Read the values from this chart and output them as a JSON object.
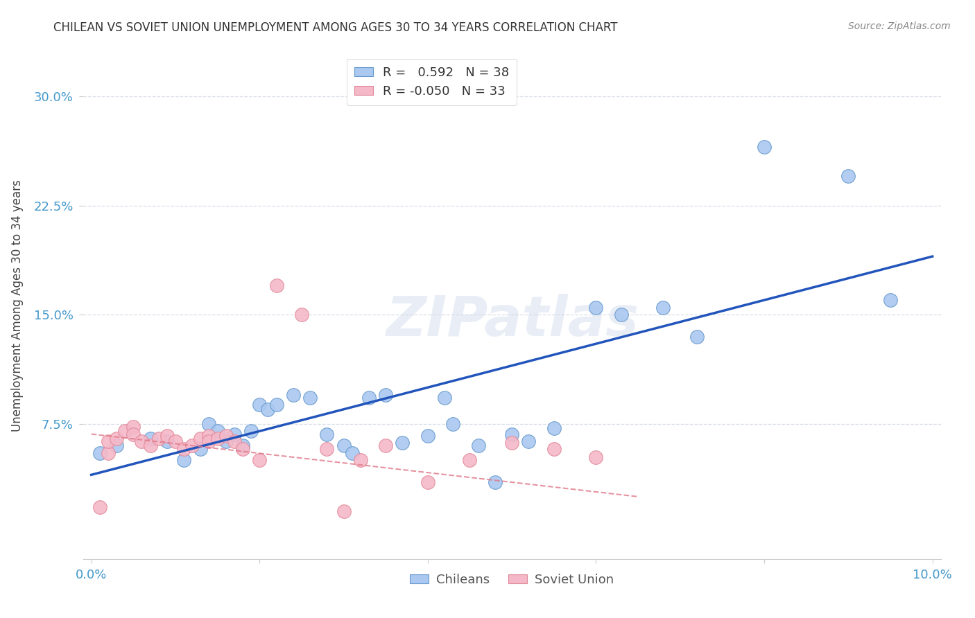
{
  "title": "CHILEAN VS SOVIET UNION UNEMPLOYMENT AMONG AGES 30 TO 34 YEARS CORRELATION CHART",
  "source": "Source: ZipAtlas.com",
  "ylabel": "Unemployment Among Ages 30 to 34 years",
  "xlim_min": -0.001,
  "xlim_max": 0.101,
  "ylim_min": -0.018,
  "ylim_max": 0.33,
  "chilean_R": 0.592,
  "chilean_N": 38,
  "soviet_R": -0.05,
  "soviet_N": 33,
  "chilean_color": "#aac8f0",
  "chilean_edge_color": "#6699cc",
  "soviet_color": "#f5b8c8",
  "soviet_edge_color": "#e08898",
  "chilean_line_color": "#2255bb",
  "soviet_line_color": "#e07888",
  "grid_color": "#d8dde8",
  "bg_color": "#ffffff",
  "watermark": "ZIPatlas",
  "chilean_x": [
    0.001,
    0.003,
    0.007,
    0.009,
    0.011,
    0.013,
    0.014,
    0.015,
    0.016,
    0.017,
    0.018,
    0.019,
    0.02,
    0.021,
    0.022,
    0.024,
    0.026,
    0.028,
    0.03,
    0.031,
    0.033,
    0.035,
    0.037,
    0.04,
    0.042,
    0.043,
    0.046,
    0.048,
    0.05,
    0.052,
    0.055,
    0.06,
    0.063,
    0.068,
    0.072,
    0.08,
    0.09,
    0.095
  ],
  "chilean_y": [
    0.055,
    0.06,
    0.065,
    0.063,
    0.05,
    0.058,
    0.075,
    0.07,
    0.063,
    0.068,
    0.06,
    0.07,
    0.088,
    0.085,
    0.088,
    0.095,
    0.093,
    0.068,
    0.06,
    0.055,
    0.093,
    0.095,
    0.062,
    0.067,
    0.093,
    0.075,
    0.06,
    0.035,
    0.068,
    0.063,
    0.072,
    0.155,
    0.15,
    0.155,
    0.135,
    0.265,
    0.245,
    0.16
  ],
  "soviet_x": [
    0.001,
    0.002,
    0.002,
    0.003,
    0.004,
    0.005,
    0.005,
    0.006,
    0.007,
    0.008,
    0.009,
    0.01,
    0.011,
    0.012,
    0.013,
    0.014,
    0.014,
    0.015,
    0.016,
    0.017,
    0.018,
    0.02,
    0.022,
    0.025,
    0.028,
    0.03,
    0.032,
    0.035,
    0.04,
    0.045,
    0.05,
    0.055,
    0.06
  ],
  "soviet_y": [
    0.018,
    0.055,
    0.063,
    0.065,
    0.07,
    0.073,
    0.068,
    0.063,
    0.06,
    0.065,
    0.067,
    0.063,
    0.058,
    0.06,
    0.065,
    0.067,
    0.063,
    0.065,
    0.067,
    0.063,
    0.058,
    0.05,
    0.17,
    0.15,
    0.058,
    0.015,
    0.05,
    0.06,
    0.035,
    0.05,
    0.062,
    0.058,
    0.052
  ]
}
